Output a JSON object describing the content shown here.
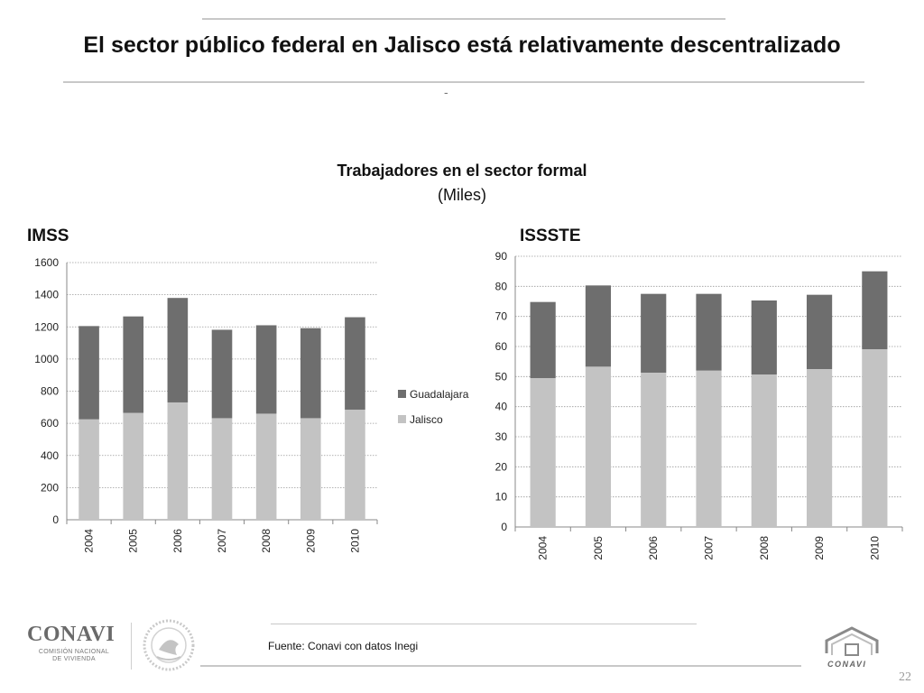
{
  "slide": {
    "title": "El sector público federal en Jalisco está relativamente descentralizado",
    "dash": "-",
    "source": "Fuente: Conavi  con datos Inegi",
    "page_number": "22"
  },
  "logos": {
    "left_name": "CONAVI",
    "left_sub_line1": "COMISIÓN NACIONAL",
    "left_sub_line2": "DE VIVIENDA",
    "seal_icon": "mexico-seal-icon",
    "right_icon": "house-logo-icon",
    "right_word": "CONAVI"
  },
  "colors": {
    "guadalajara": "#6e6e6e",
    "jalisco": "#c3c3c3",
    "grid": "#9a9a9a",
    "axis": "#888888"
  },
  "chart_data": [
    {
      "type": "bar",
      "stacked": true,
      "panel_label": "IMSS",
      "title": "Trabajadores en el sector formal",
      "subtitle": "(Miles)",
      "categories": [
        "2004",
        "2005",
        "2006",
        "2007",
        "2008",
        "2009",
        "2010"
      ],
      "series": [
        {
          "name": "Jalisco",
          "values": [
            625,
            665,
            730,
            632,
            660,
            632,
            685
          ]
        },
        {
          "name": "Guadalajara",
          "values": [
            580,
            600,
            650,
            550,
            550,
            560,
            575
          ]
        }
      ],
      "ylim": [
        0,
        1600
      ],
      "yticks": [
        0,
        200,
        400,
        600,
        800,
        1000,
        1200,
        1400,
        1600
      ],
      "grid": true,
      "legend": "right",
      "legend_items": [
        "Guadalajara",
        "Jalisco"
      ]
    },
    {
      "type": "bar",
      "stacked": true,
      "panel_label": "ISSSTE",
      "categories": [
        "2004",
        "2005",
        "2006",
        "2007",
        "2008",
        "2009",
        "2010"
      ],
      "series": [
        {
          "name": "Jalisco",
          "values": [
            49.5,
            53.3,
            51.3,
            52,
            50.7,
            52.5,
            59.1
          ]
        },
        {
          "name": "Guadalajara",
          "values": [
            25.3,
            27,
            26.2,
            25.5,
            24.6,
            24.7,
            25.9
          ]
        }
      ],
      "ylim": [
        0,
        90
      ],
      "yticks": [
        0,
        10,
        20,
        30,
        40,
        50,
        60,
        70,
        80,
        90
      ],
      "grid": true,
      "legend": "none"
    }
  ]
}
